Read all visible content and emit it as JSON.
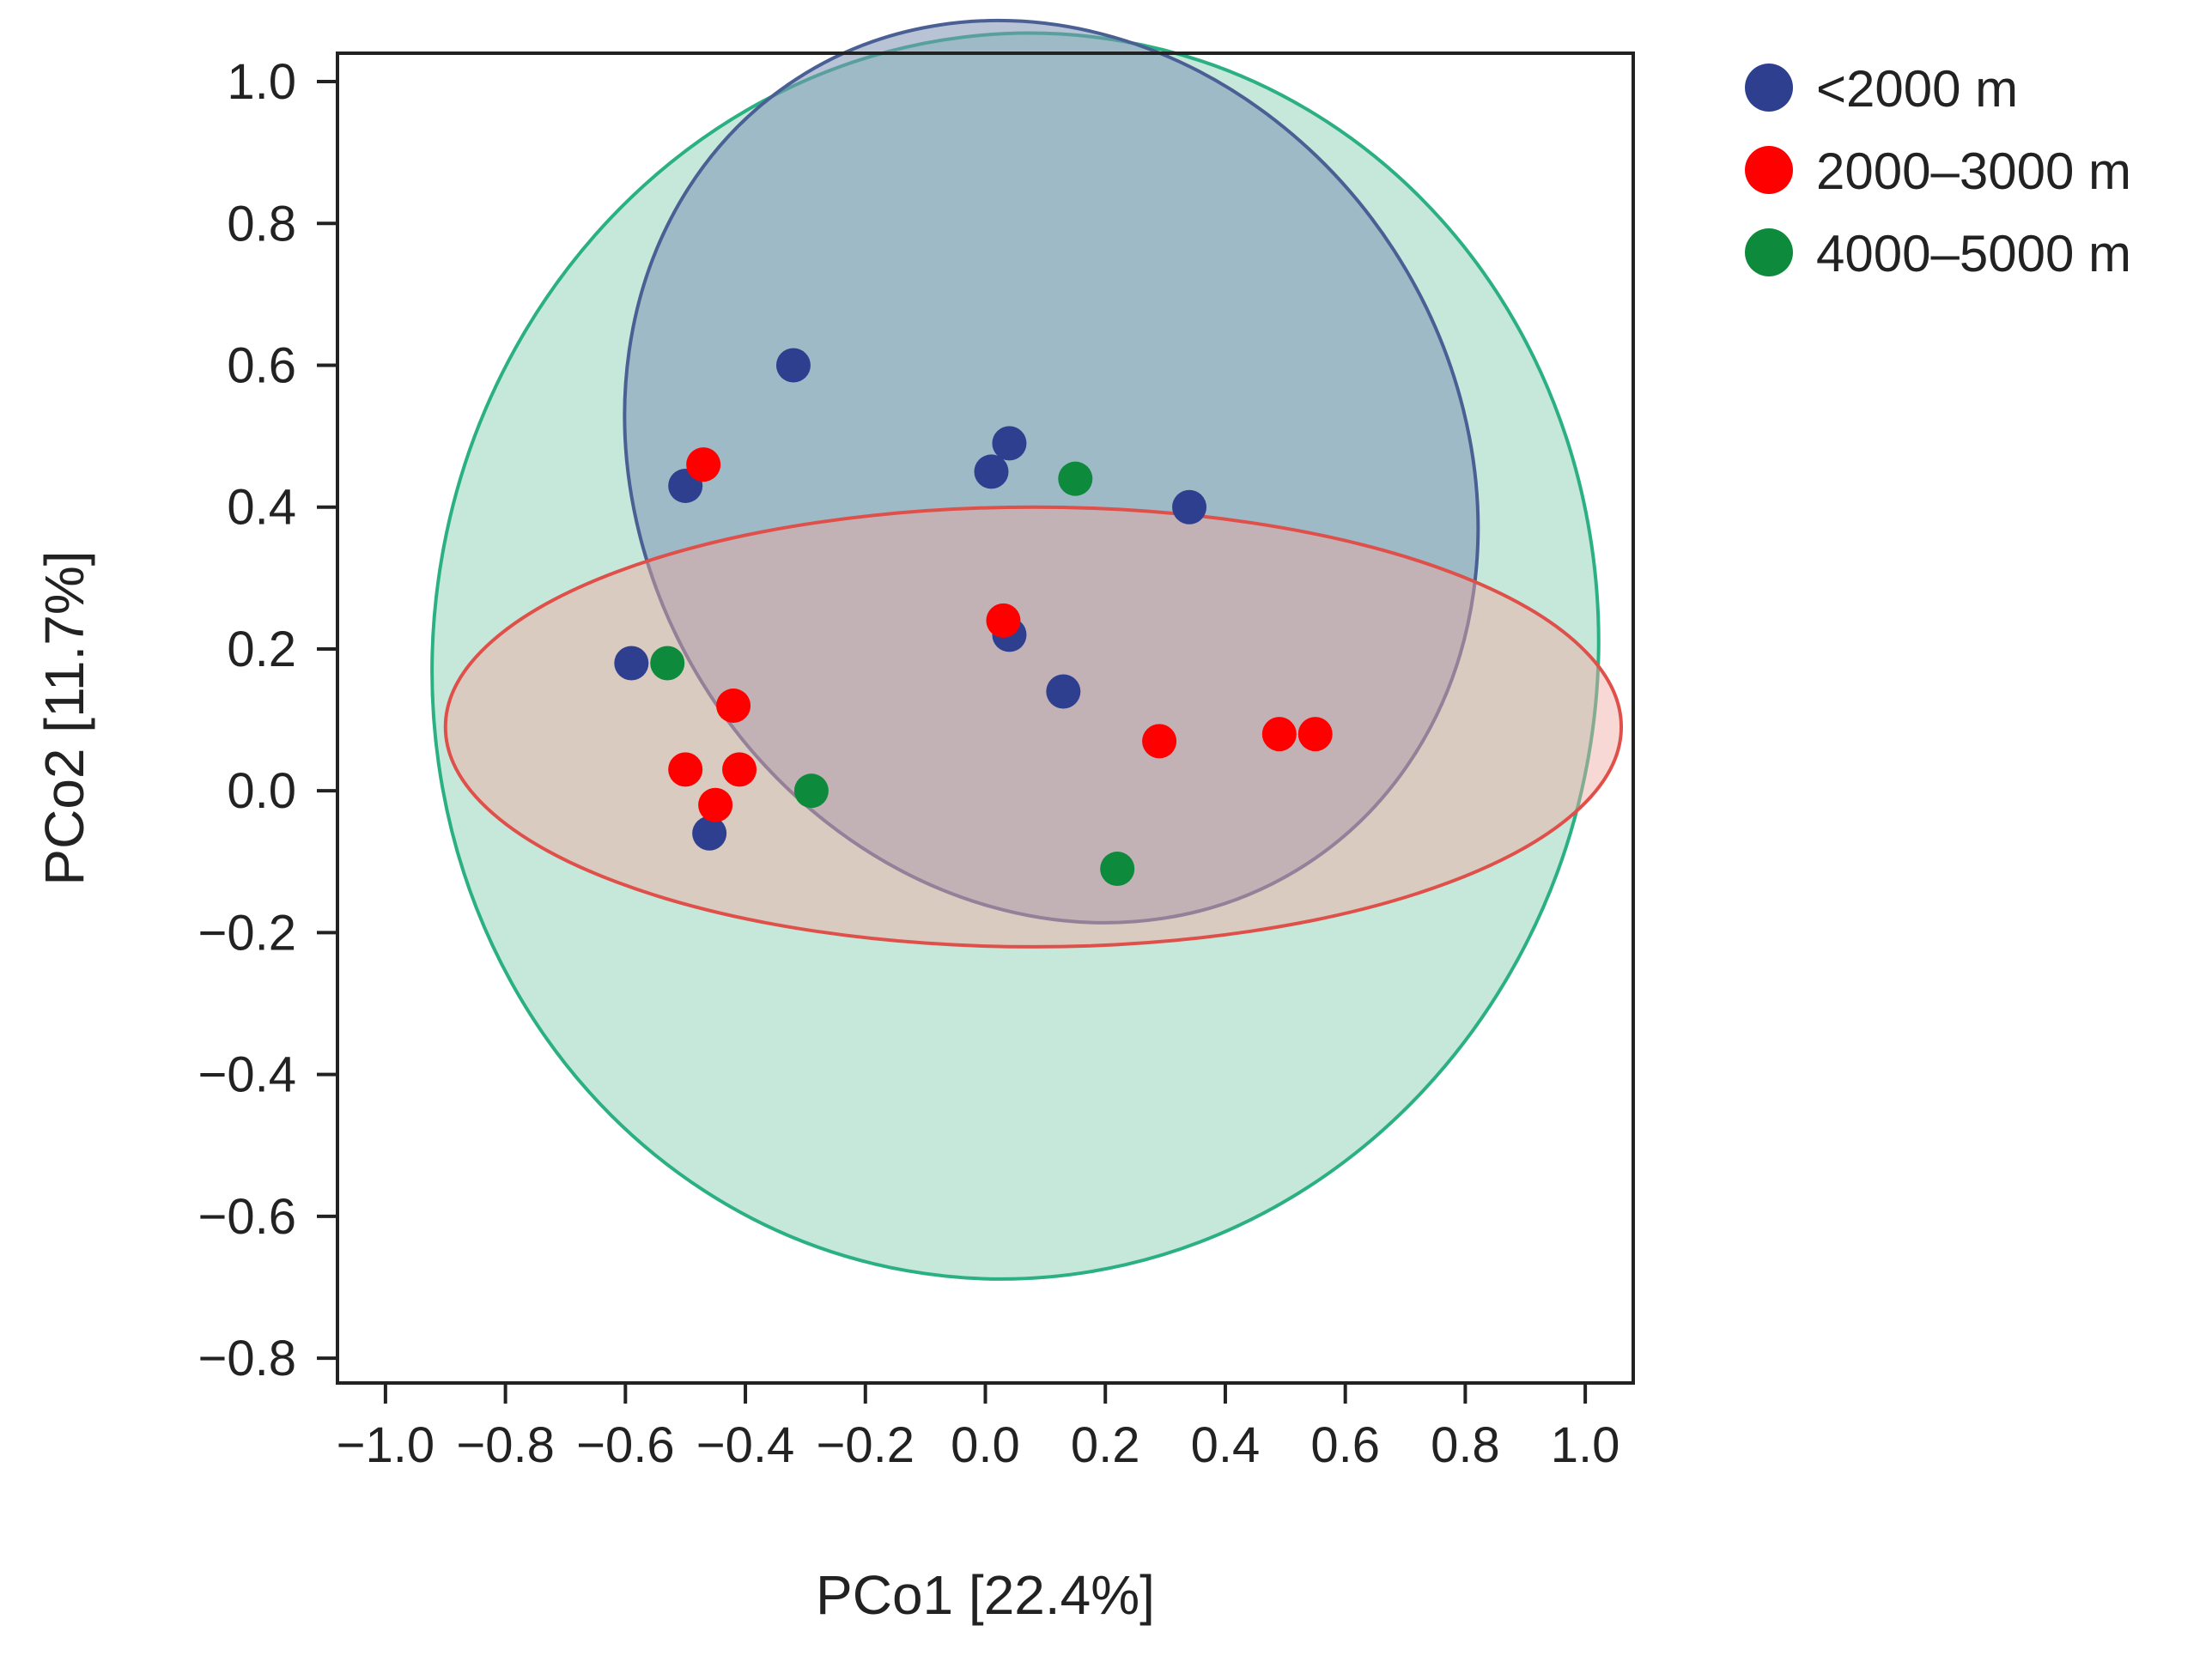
{
  "chart_data": {
    "type": "scatter",
    "title": "",
    "xlabel": "PCo1 [22.4%]",
    "ylabel": "PCo2 [11.7%]",
    "xlim": [
      -1.08,
      1.08
    ],
    "ylim": [
      -0.835,
      1.04
    ],
    "xticks": [
      -1.0,
      -0.8,
      -0.6,
      -0.4,
      -0.2,
      0.0,
      0.2,
      0.4,
      0.6,
      0.8,
      1.0
    ],
    "xtick_labels": [
      "−1.0",
      "−0.8",
      "−0.6",
      "−0.4",
      "−0.2",
      "0.0",
      "0.2",
      "0.4",
      "0.6",
      "0.8",
      "1.0"
    ],
    "yticks": [
      1.0,
      0.8,
      0.6,
      0.4,
      0.2,
      0.0,
      -0.2,
      -0.4,
      -0.6,
      -0.8
    ],
    "ytick_labels": [
      "1.0",
      "0.8",
      "0.6",
      "0.4",
      "0.2",
      "0.0",
      "−0.2",
      "−0.4",
      "−0.6",
      "−0.8"
    ],
    "grid": false,
    "legend_position": "top-right outside",
    "series": [
      {
        "name": "<2000 m",
        "color": "#2e3f8f",
        "ellipse": {
          "cx": 0.11,
          "cy": 0.45,
          "rx": 0.68,
          "ry": 0.66,
          "rotation_deg": 33,
          "fill": "#7d93b5",
          "fill_opacity": 0.55,
          "stroke": "#4a5f93"
        },
        "points": [
          {
            "x": -0.32,
            "y": 0.6
          },
          {
            "x": 0.04,
            "y": 0.49
          },
          {
            "x": -0.5,
            "y": 0.43
          },
          {
            "x": 0.01,
            "y": 0.45
          },
          {
            "x": 0.34,
            "y": 0.4
          },
          {
            "x": 0.04,
            "y": 0.22
          },
          {
            "x": -0.59,
            "y": 0.18
          },
          {
            "x": 0.13,
            "y": 0.14
          },
          {
            "x": -0.46,
            "y": -0.06
          }
        ]
      },
      {
        "name": "2000–3000 m",
        "color": "#ff0000",
        "ellipse": {
          "cx": 0.08,
          "cy": 0.09,
          "rx": 0.98,
          "ry": 0.31,
          "rotation_deg": 0,
          "fill": "#f0a8a0",
          "fill_opacity": 0.45,
          "stroke": "#e0504a"
        },
        "points": [
          {
            "x": -0.47,
            "y": 0.46
          },
          {
            "x": 0.03,
            "y": 0.24
          },
          {
            "x": -0.42,
            "y": 0.12
          },
          {
            "x": 0.29,
            "y": 0.07
          },
          {
            "x": 0.49,
            "y": 0.08
          },
          {
            "x": 0.55,
            "y": 0.08
          },
          {
            "x": -0.5,
            "y": 0.03
          },
          {
            "x": -0.41,
            "y": 0.03
          },
          {
            "x": -0.45,
            "y": -0.02
          }
        ]
      },
      {
        "name": "4000–5000 m",
        "color": "#0e8a3c",
        "ellipse": {
          "cx": 0.05,
          "cy": 0.19,
          "rx": 0.97,
          "ry": 0.88,
          "rotation_deg": -10,
          "fill": "#a8dcc8",
          "fill_opacity": 0.65,
          "stroke": "#2bb083"
        },
        "points": [
          {
            "x": 0.15,
            "y": 0.44
          },
          {
            "x": -0.53,
            "y": 0.18
          },
          {
            "x": -0.29,
            "y": 0.0
          },
          {
            "x": 0.22,
            "y": -0.11
          }
        ]
      }
    ]
  }
}
